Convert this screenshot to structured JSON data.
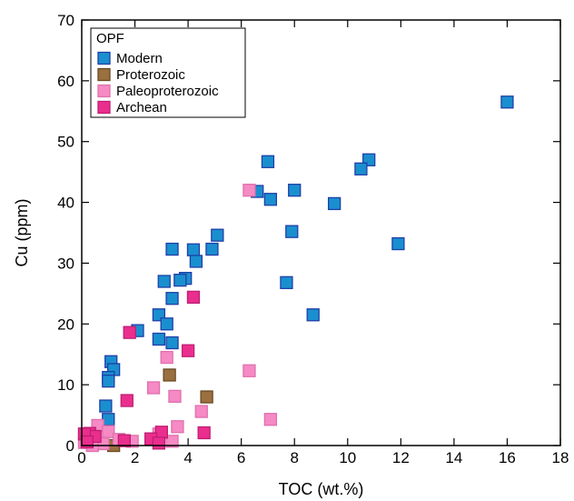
{
  "chart_data": {
    "type": "scatter",
    "title": "",
    "xlabel": "TOC (wt.%)",
    "ylabel": "Cu (ppm)",
    "xlim": [
      0,
      18
    ],
    "ylim": [
      0,
      70
    ],
    "xticks": [
      0,
      2,
      4,
      6,
      8,
      10,
      12,
      14,
      16,
      18
    ],
    "yticks": [
      0,
      10,
      20,
      30,
      40,
      50,
      60,
      70
    ],
    "grid": false,
    "legend": {
      "title": "OPF",
      "placement": "top-left"
    },
    "series": [
      {
        "name": "Modern",
        "color": "#1a8fcf",
        "stroke": "#1f3fa8",
        "points": [
          [
            16.0,
            56.5
          ],
          [
            10.8,
            47.0
          ],
          [
            10.5,
            45.5
          ],
          [
            7.0,
            46.7
          ],
          [
            6.6,
            41.8
          ],
          [
            7.1,
            40.5
          ],
          [
            8.0,
            42.0
          ],
          [
            9.5,
            39.8
          ],
          [
            11.9,
            33.2
          ],
          [
            7.9,
            35.2
          ],
          [
            7.7,
            26.8
          ],
          [
            8.7,
            21.5
          ],
          [
            5.1,
            34.6
          ],
          [
            4.9,
            32.3
          ],
          [
            4.2,
            32.2
          ],
          [
            3.4,
            32.3
          ],
          [
            4.3,
            30.3
          ],
          [
            3.9,
            27.5
          ],
          [
            3.7,
            27.2
          ],
          [
            3.1,
            27.0
          ],
          [
            3.4,
            24.2
          ],
          [
            2.9,
            21.5
          ],
          [
            3.2,
            20.0
          ],
          [
            2.1,
            18.9
          ],
          [
            2.9,
            17.5
          ],
          [
            3.4,
            16.9
          ],
          [
            1.1,
            13.8
          ],
          [
            1.2,
            12.5
          ],
          [
            1.0,
            11.2
          ],
          [
            1.0,
            10.6
          ],
          [
            0.9,
            6.5
          ],
          [
            1.0,
            4.3
          ]
        ]
      },
      {
        "name": "Proterozoic",
        "color": "#9a7040",
        "stroke": "#6a4a22",
        "points": [
          [
            3.3,
            11.6
          ],
          [
            4.7,
            8.0
          ],
          [
            1.2,
            0.0
          ]
        ]
      },
      {
        "name": "Paleoproterozoic",
        "color": "#f58ac4",
        "stroke": "#e070ad",
        "points": [
          [
            6.3,
            42.0
          ],
          [
            6.3,
            12.3
          ],
          [
            3.2,
            14.5
          ],
          [
            2.7,
            9.5
          ],
          [
            3.5,
            8.1
          ],
          [
            7.1,
            4.3
          ],
          [
            4.5,
            5.6
          ],
          [
            3.6,
            3.1
          ],
          [
            0.6,
            3.3
          ],
          [
            1.0,
            2.3
          ],
          [
            2.9,
            1.9
          ],
          [
            3.4,
            0.7
          ],
          [
            1.4,
            1.0
          ],
          [
            0.5,
            1.2
          ],
          [
            0.8,
            0.3
          ],
          [
            0.1,
            0.5
          ],
          [
            1.9,
            0.7
          ],
          [
            0.4,
            0.0
          ]
        ]
      },
      {
        "name": "Archean",
        "color": "#ea2e8e",
        "stroke": "#c01e72",
        "points": [
          [
            4.2,
            24.4
          ],
          [
            1.8,
            18.6
          ],
          [
            4.0,
            15.6
          ],
          [
            1.7,
            7.4
          ],
          [
            4.6,
            2.1
          ],
          [
            3.0,
            2.2
          ],
          [
            2.6,
            1.1
          ],
          [
            2.9,
            0.4
          ],
          [
            0.3,
            2.0
          ],
          [
            0.5,
            1.5
          ],
          [
            0.1,
            1.9
          ],
          [
            1.6,
            0.8
          ],
          [
            0.2,
            0.6
          ]
        ]
      }
    ]
  }
}
